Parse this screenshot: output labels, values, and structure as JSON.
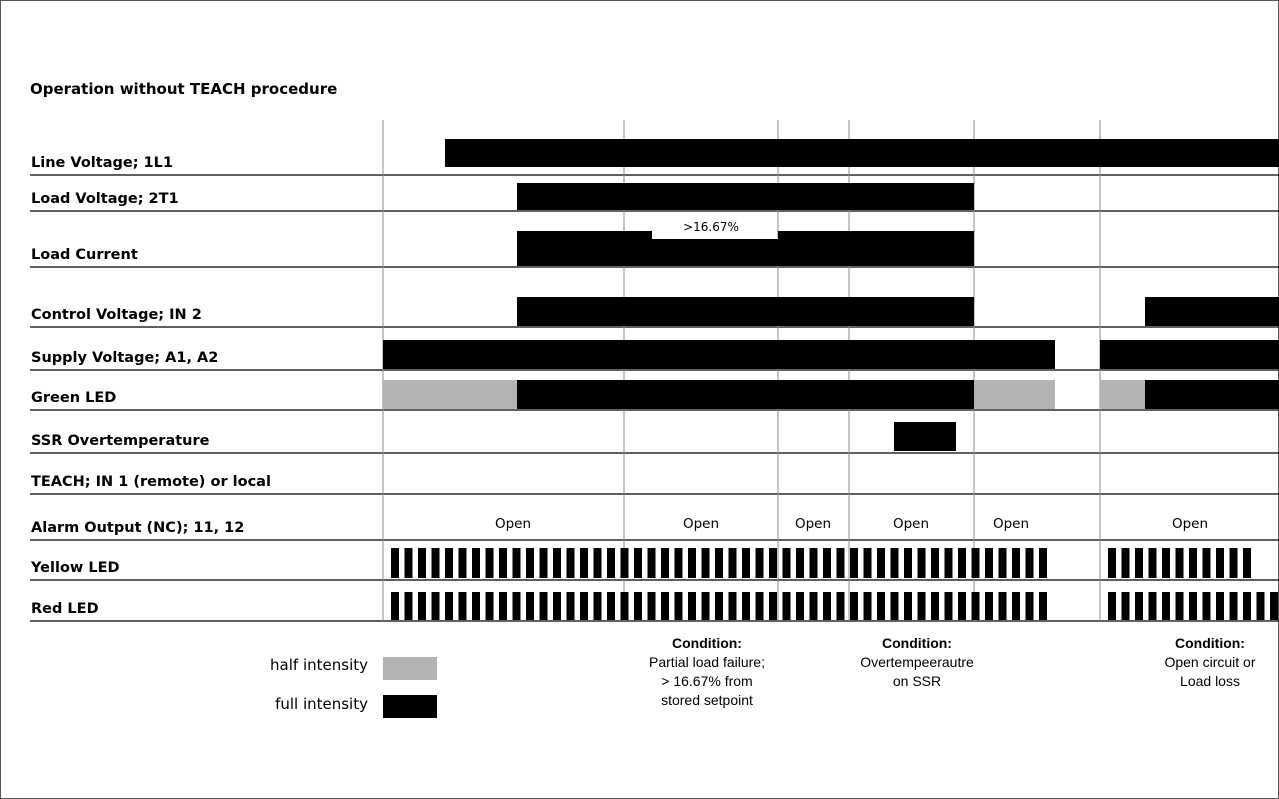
{
  "title": "Operation without TEACH procedure",
  "colors": {
    "full": "#000000",
    "half": "#b3b3b3",
    "grid": "#888888",
    "line": "#000000"
  },
  "signals": [
    {
      "label": "Line Voltage; 1L1",
      "segments": [
        {
          "from": 445,
          "to": 1055,
          "level": "full"
        },
        {
          "from": 1055,
          "to": 1095,
          "level": "full",
          "thin": true
        },
        {
          "from": 1095,
          "to": 1279,
          "level": "full"
        }
      ]
    },
    {
      "label": "Load Voltage; 2T1",
      "segments": [
        {
          "from": 517,
          "to": 974,
          "level": "full"
        }
      ]
    },
    {
      "label": "Load Current",
      "segments": [
        {
          "from": 517,
          "to": 652,
          "level": "full"
        },
        {
          "from": 652,
          "to": 778,
          "level": "full",
          "reduced": true
        },
        {
          "from": 778,
          "to": 974,
          "level": "full"
        }
      ],
      "marker": ">16.67%"
    },
    {
      "label": "Control Voltage; IN 2",
      "segments": [
        {
          "from": 517,
          "to": 974,
          "level": "full"
        },
        {
          "from": 1145,
          "to": 1279,
          "level": "full"
        }
      ]
    },
    {
      "label": "Supply Voltage; A1, A2",
      "segments": [
        {
          "from": 383,
          "to": 1055,
          "level": "full"
        },
        {
          "from": 1100,
          "to": 1279,
          "level": "full"
        }
      ]
    },
    {
      "label": "Green LED",
      "segments": [
        {
          "from": 383,
          "to": 517,
          "level": "half"
        },
        {
          "from": 517,
          "to": 974,
          "level": "full"
        },
        {
          "from": 974,
          "to": 1055,
          "level": "half"
        },
        {
          "from": 1100,
          "to": 1145,
          "level": "half"
        },
        {
          "from": 1145,
          "to": 1279,
          "level": "full"
        }
      ]
    },
    {
      "label": "SSR Overtemperature",
      "segments": [
        {
          "from": 894,
          "to": 956,
          "level": "full"
        }
      ]
    },
    {
      "label": "TEACH; IN 1 (remote) or local",
      "segments": []
    },
    {
      "label": "Alarm Output (NC); 11, 12",
      "states": [
        "Open",
        "Open",
        "Open",
        "Open",
        "Open",
        "Open"
      ]
    },
    {
      "label": "Yellow LED",
      "pulses": [
        {
          "from": 383,
          "to": 1048
        },
        {
          "from": 1100,
          "to": 1262
        }
      ]
    },
    {
      "label": "Red LED",
      "pulses": [
        {
          "from": 383,
          "to": 1048
        },
        {
          "from": 1100,
          "to": 1279
        }
      ]
    }
  ],
  "legend": [
    {
      "label": "half intensity",
      "level": "half"
    },
    {
      "label": "full intensity",
      "level": "full"
    }
  ],
  "conditions": [
    {
      "heading": "Condition:",
      "lines": [
        "Partial load failure;",
        "> 16.67% from",
        "stored setpoint"
      ]
    },
    {
      "heading": "Condition:",
      "lines": [
        "Overtempeerautre",
        "on SSR"
      ]
    },
    {
      "heading": "Condition:",
      "lines": [
        "Open circuit or",
        "Load loss"
      ]
    }
  ]
}
